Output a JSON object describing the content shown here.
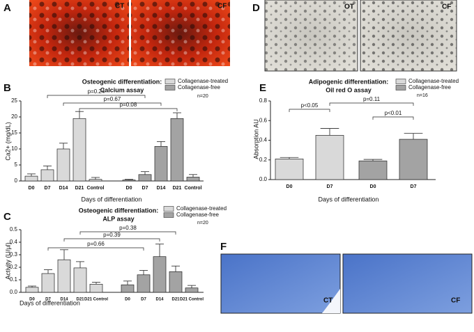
{
  "figure_panels": [
    {
      "label": "A",
      "tags": [
        "CT",
        "CF"
      ]
    },
    {
      "label": "D",
      "tags": [
        "OT",
        "CF"
      ]
    },
    {
      "label": "F",
      "tags": [
        "CT",
        "CF"
      ]
    }
  ],
  "chart_data": [
    {
      "type": "bar",
      "panel": "B",
      "title": "Osteogenic differentiation:",
      "subtitle": "Calcium assay",
      "note": "n=20",
      "y_label": "Ca2+ (mg/dL)",
      "x_label": "Days of differentiation",
      "categories": [
        "D0",
        "D7",
        "D14",
        "D21",
        "Control",
        "D0",
        "D7",
        "D14",
        "D21",
        "Control"
      ],
      "series": [
        {
          "name": "Collagenase-treated",
          "color": "#d9d9d9",
          "values": [
            1.5,
            3.5,
            10,
            19.5,
            0.5,
            null,
            null,
            null,
            null,
            null
          ],
          "errors": [
            0.7,
            1.2,
            1.8,
            2.2,
            0.6,
            null,
            null,
            null,
            null,
            null
          ]
        },
        {
          "name": "Collagenase-free",
          "color": "#a3a3a3",
          "values": [
            null,
            null,
            null,
            null,
            null,
            0.3,
            2,
            10.8,
            19.5,
            1.2
          ],
          "errors": [
            null,
            null,
            null,
            null,
            null,
            0.2,
            0.9,
            1.5,
            1.8,
            0.8
          ]
        }
      ],
      "annotations": [
        "p=0.24",
        "p=0.67",
        "p=0.08"
      ],
      "ylim": [
        0,
        25
      ],
      "yticks": [
        0,
        5,
        10,
        15,
        20,
        25
      ]
    },
    {
      "type": "bar",
      "panel": "C",
      "title": "Osteogenic differentiation:",
      "subtitle": "ALP assay",
      "note": "n=20",
      "y_label": "Activity (U/µl)",
      "x_label": "Days of differentiation",
      "categories": [
        "D0",
        "D7",
        "D14",
        "D21",
        "D21 Control",
        "D0",
        "D7",
        "D14",
        "D21",
        "D21 Control"
      ],
      "series": [
        {
          "name": "Collagenase-treated",
          "color": "#d9d9d9",
          "values": [
            0.04,
            0.15,
            0.26,
            0.195,
            0.065,
            null,
            null,
            null,
            null,
            null
          ],
          "errors": [
            0.01,
            0.03,
            0.08,
            0.05,
            0.015,
            null,
            null,
            null,
            null,
            null
          ]
        },
        {
          "name": "Collagenase-free",
          "color": "#a3a3a3",
          "values": [
            null,
            null,
            null,
            null,
            null,
            0.06,
            0.14,
            0.285,
            0.165,
            0.035
          ],
          "errors": [
            null,
            null,
            null,
            null,
            null,
            0.03,
            0.035,
            0.1,
            0.045,
            0.02
          ]
        }
      ],
      "annotations": [
        "p=0.38",
        "p=0.39",
        "p=0.66"
      ],
      "ylim": [
        0,
        0.5
      ],
      "yticks": [
        {
          "value": 0,
          "label": "0.0"
        },
        0.1,
        0.2,
        0.3,
        0.4,
        0.5
      ]
    },
    {
      "type": "bar",
      "panel": "E",
      "title": "Adipogenic differentiation:",
      "subtitle": "Oil red O assay",
      "note": "n=16",
      "y_label": "Absorption AU",
      "x_label": "Days of differentiation",
      "categories": [
        "D0",
        "D7",
        "D0",
        "D7"
      ],
      "series": [
        {
          "name": "Collagenase-treated",
          "color": "#d9d9d9",
          "values": [
            0.21,
            0.45,
            null,
            null
          ],
          "errors": [
            0.015,
            0.07,
            null,
            null
          ]
        },
        {
          "name": "Collagenase-free",
          "color": "#a3a3a3",
          "values": [
            null,
            null,
            0.19,
            0.41
          ],
          "errors": [
            null,
            null,
            0.015,
            0.06
          ]
        }
      ],
      "annotations": [
        "p<0.05",
        "p=0.11",
        "p<0.01"
      ],
      "ylim": [
        0,
        0.8
      ],
      "yticks": [
        {
          "value": 0,
          "label": "0.0"
        },
        0.2,
        0.4,
        0.6,
        0.8
      ]
    }
  ]
}
